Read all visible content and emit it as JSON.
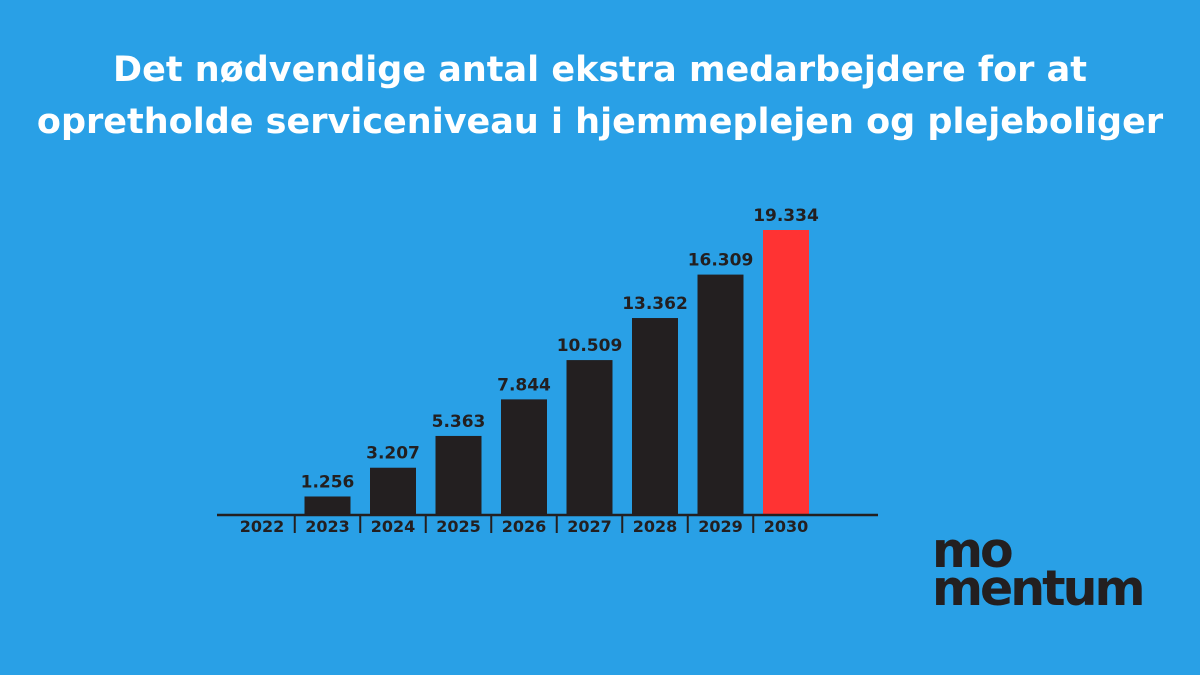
{
  "header": {
    "title_line1": "Det nødvendige antal ekstra medarbejdere for at",
    "title_line2": "opretholde serviceniveau i hjemmeplejen og plejeboliger"
  },
  "logo": {
    "line1": "mo",
    "line2": "mentum"
  },
  "colors": {
    "background": "#29a0e6",
    "bar": "#231f20",
    "highlight": "#ff3333",
    "title": "#ffffff"
  },
  "chart_data": {
    "type": "bar",
    "categories": [
      "2022",
      "2023",
      "2024",
      "2025",
      "2026",
      "2027",
      "2028",
      "2029",
      "2030"
    ],
    "values": [
      0,
      1256,
      3207,
      5363,
      7844,
      10509,
      13362,
      16309,
      19334
    ],
    "value_labels": [
      "",
      "1.256",
      "3.207",
      "5.363",
      "7.844",
      "10.509",
      "13.362",
      "16.309",
      "19.334"
    ],
    "highlight_category": "2030",
    "title": "",
    "xlabel": "",
    "ylabel": "",
    "ylim": [
      0,
      19334
    ],
    "grid": false
  }
}
